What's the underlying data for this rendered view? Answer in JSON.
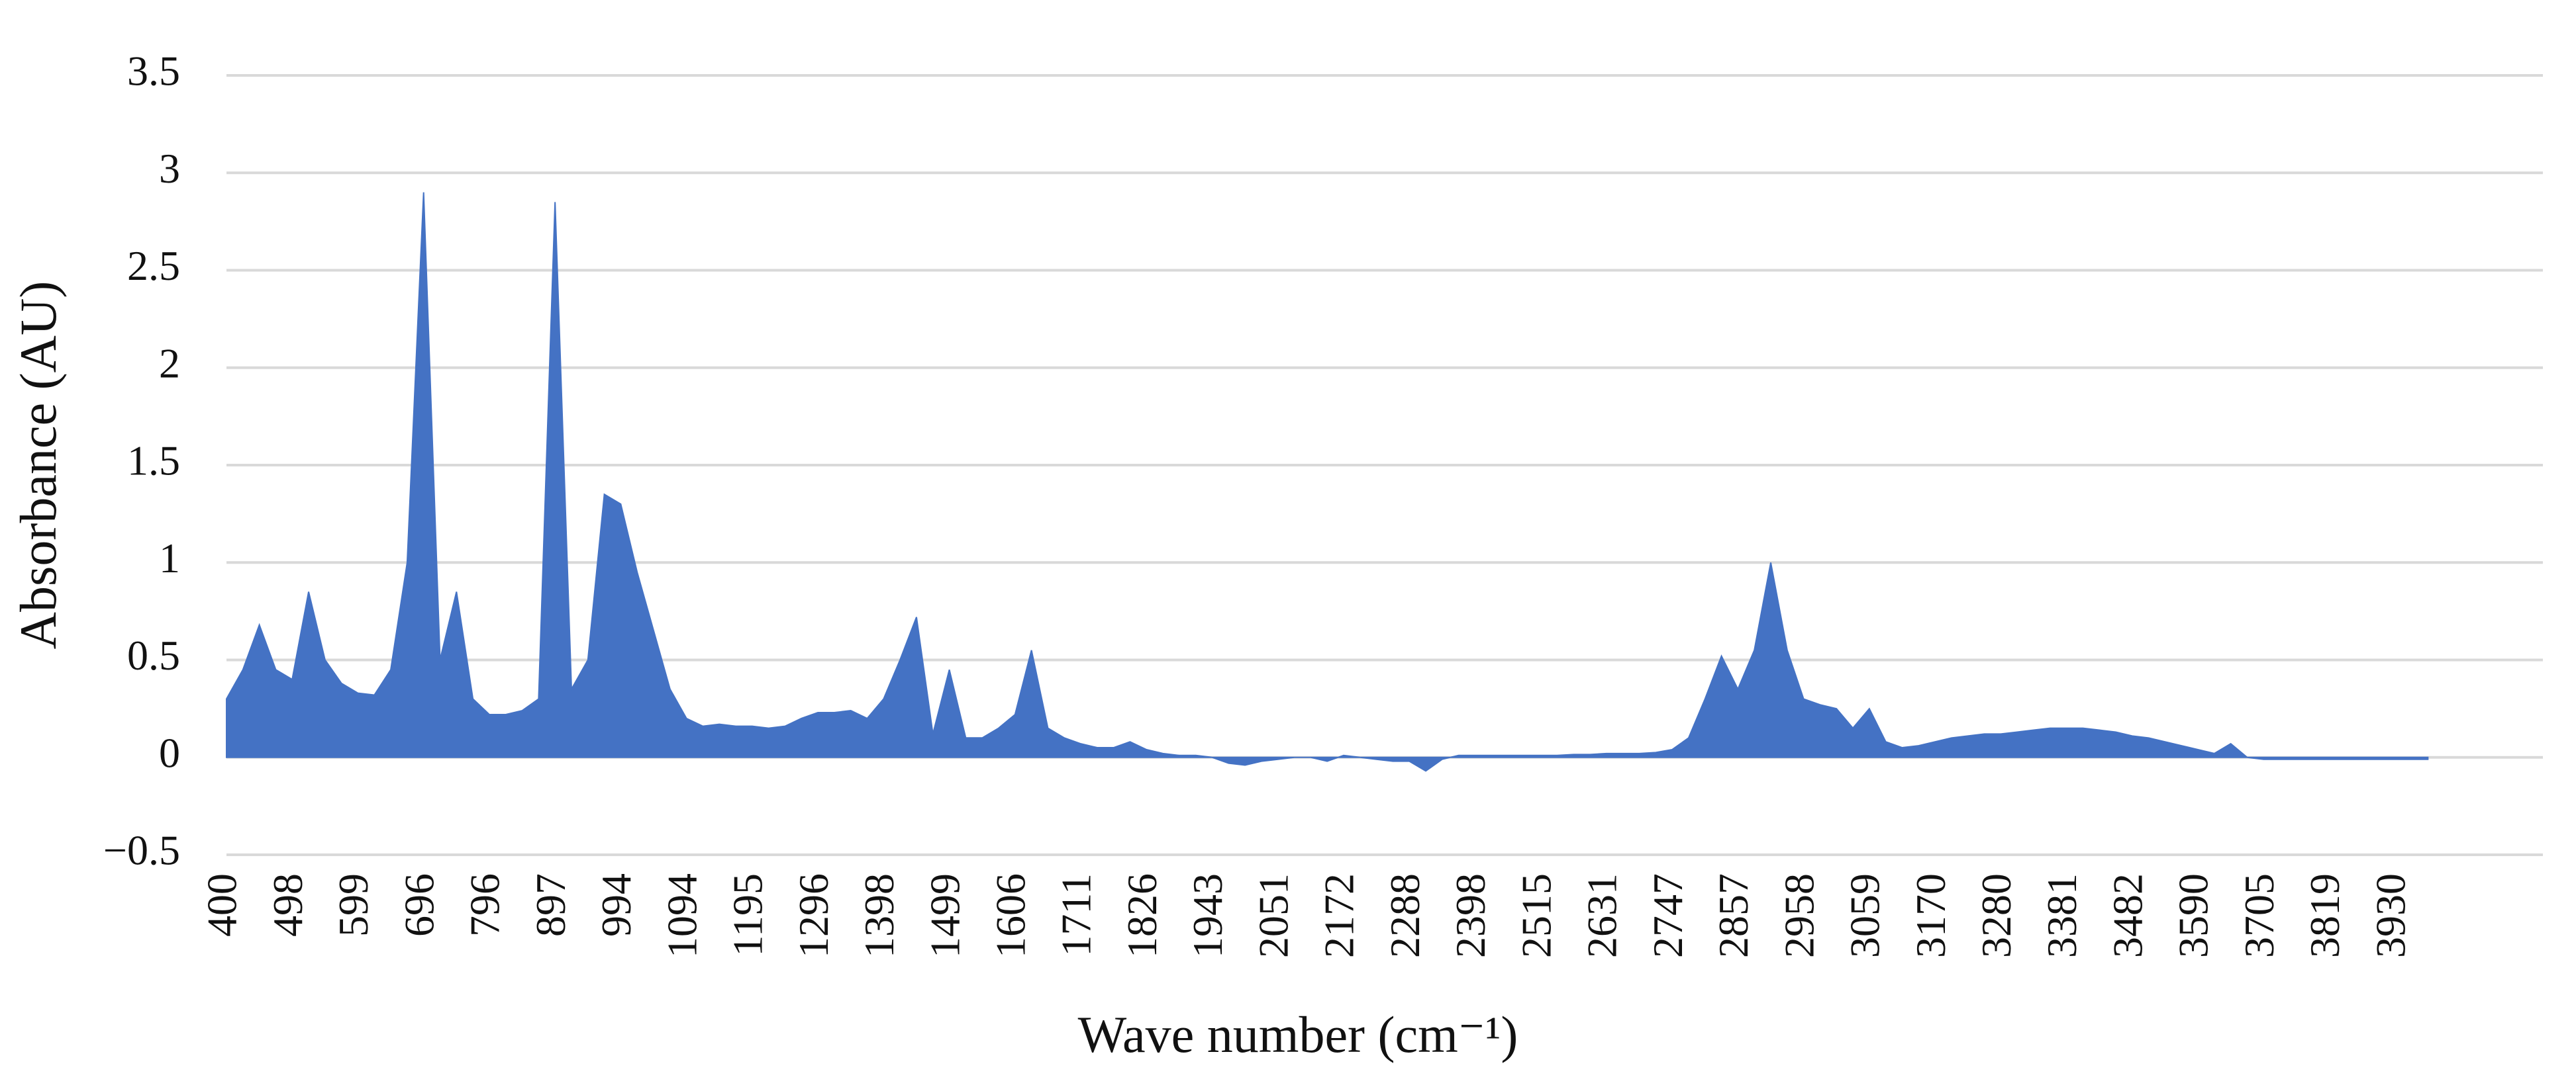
{
  "chart_data": {
    "type": "area",
    "x_label": "Wave number (cm⁻¹)",
    "y_label": "Absorbance (AU)",
    "color": "#4472c4",
    "grid": true,
    "categories": [
      "400",
      null,
      null,
      null,
      "498",
      null,
      null,
      null,
      "599",
      null,
      null,
      null,
      "696",
      null,
      null,
      null,
      "796",
      null,
      null,
      null,
      "897",
      null,
      null,
      null,
      "994",
      null,
      null,
      null,
      "1094",
      null,
      null,
      null,
      "1195",
      null,
      null,
      null,
      "1296",
      null,
      null,
      null,
      "1398",
      null,
      null,
      null,
      "1499",
      null,
      null,
      null,
      "1606",
      null,
      null,
      null,
      "1711",
      null,
      null,
      null,
      "1826",
      null,
      null,
      null,
      "1943",
      null,
      null,
      null,
      "2051",
      null,
      null,
      null,
      "2172",
      null,
      null,
      null,
      "2288",
      null,
      null,
      null,
      "2398",
      null,
      null,
      null,
      "2515",
      null,
      null,
      null,
      "2631",
      null,
      null,
      null,
      "2747",
      null,
      null,
      null,
      "2857",
      null,
      null,
      null,
      "2958",
      null,
      null,
      null,
      "3059",
      null,
      null,
      null,
      "3170",
      null,
      null,
      null,
      "3280",
      null,
      null,
      null,
      "3381",
      null,
      null,
      null,
      "3482",
      null,
      null,
      null,
      "3590",
      null,
      null,
      null,
      "3705",
      null,
      null,
      null,
      "3819",
      null,
      null,
      null,
      "3930",
      null,
      null,
      null,
      null,
      null,
      null,
      null,
      null,
      null
    ],
    "values": [
      0.3,
      0.45,
      0.68,
      0.45,
      0.4,
      0.85,
      0.5,
      0.38,
      0.33,
      0.32,
      0.45,
      1.0,
      2.9,
      0.5,
      0.85,
      0.3,
      0.22,
      0.22,
      0.24,
      0.3,
      2.85,
      0.35,
      0.5,
      1.35,
      1.3,
      0.95,
      0.65,
      0.35,
      0.2,
      0.16,
      0.17,
      0.16,
      0.16,
      0.15,
      0.16,
      0.2,
      0.23,
      0.23,
      0.24,
      0.2,
      0.3,
      0.5,
      0.72,
      0.12,
      0.45,
      0.1,
      0.1,
      0.15,
      0.22,
      0.55,
      0.15,
      0.1,
      0.07,
      0.05,
      0.05,
      0.08,
      0.04,
      0.02,
      0.01,
      0.01,
      0,
      -0.03,
      -0.04,
      -0.02,
      -0.01,
      0,
      0,
      -0.02,
      0.01,
      0,
      -0.01,
      -0.02,
      -0.02,
      -0.07,
      -0.01,
      0.01,
      0.01,
      0.01,
      0.01,
      0.01,
      0.01,
      0.01,
      0.015,
      0.015,
      0.02,
      0.02,
      0.02,
      0.025,
      0.04,
      0.1,
      0.3,
      0.52,
      0.35,
      0.55,
      1.0,
      0.55,
      0.3,
      0.27,
      0.25,
      0.15,
      0.25,
      0.08,
      0.05,
      0.06,
      0.08,
      0.1,
      0.11,
      0.12,
      0.12,
      0.13,
      0.14,
      0.15,
      0.15,
      0.15,
      0.14,
      0.13,
      0.11,
      0.1,
      0.08,
      0.06,
      0.04,
      0.02,
      0.07,
      0,
      -0.01,
      -0.01,
      -0.01,
      -0.01,
      -0.01,
      -0.01,
      -0.01,
      -0.01,
      -0.01,
      -0.01,
      -0.01,
      null,
      null,
      null,
      null,
      null,
      null,
      null
    ],
    "ylim": [
      -0.5,
      3.5
    ],
    "yticks": [
      {
        "value": -0.5,
        "label": "−0.5"
      },
      0,
      0.5,
      1,
      1.5,
      2,
      2.5,
      3,
      3.5
    ]
  }
}
